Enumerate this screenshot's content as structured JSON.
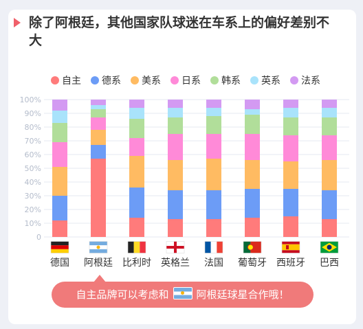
{
  "title": "除了阿根廷，其他国家队球迷在车系上的偏好差别不大",
  "callout": {
    "before": "自主品牌可以考虑和",
    "after": "阿根廷球星合作哦！",
    "flag_icon": "argentina-flag-icon"
  },
  "chart_data": {
    "type": "bar",
    "stacked": true,
    "title": "",
    "xlabel": "",
    "ylabel": "",
    "ylim": [
      0,
      100
    ],
    "y_ticks": [
      "0",
      "10%",
      "20%",
      "30%",
      "40%",
      "50%",
      "60%",
      "70%",
      "80%",
      "90%",
      "100%"
    ],
    "grid": true,
    "legend_position": "top",
    "categories": [
      "德国",
      "阿根廷",
      "比利时",
      "英格兰",
      "法国",
      "葡萄牙",
      "西班牙",
      "巴西"
    ],
    "flags": [
      "germany-flag-icon",
      "argentina-flag-icon",
      "belgium-flag-icon",
      "england-flag-icon",
      "france-flag-icon",
      "portugal-flag-icon",
      "spain-flag-icon",
      "brazil-flag-icon"
    ],
    "series": [
      {
        "name": "自主",
        "color": "#ff7b7b",
        "values": [
          12,
          57,
          14,
          13,
          13,
          14,
          15,
          13
        ]
      },
      {
        "name": "德系",
        "color": "#6c9cf6",
        "values": [
          18,
          10,
          22,
          21,
          21,
          21,
          20,
          21
        ]
      },
      {
        "name": "美系",
        "color": "#ffbb62",
        "values": [
          21,
          11,
          23,
          22,
          23,
          21,
          20,
          22
        ]
      },
      {
        "name": "日系",
        "color": "#ff8ad8",
        "values": [
          18,
          9,
          13,
          19,
          18,
          19,
          19,
          18
        ]
      },
      {
        "name": "韩系",
        "color": "#b1de9a",
        "values": [
          14,
          6,
          14,
          12,
          13,
          14,
          13,
          13
        ]
      },
      {
        "name": "英系",
        "color": "#a9e3fb",
        "values": [
          9,
          3,
          8,
          7,
          6,
          4,
          7,
          7
        ]
      },
      {
        "name": "法系",
        "color": "#d39af2",
        "values": [
          8,
          4,
          6,
          6,
          6,
          7,
          6,
          6
        ]
      }
    ]
  }
}
